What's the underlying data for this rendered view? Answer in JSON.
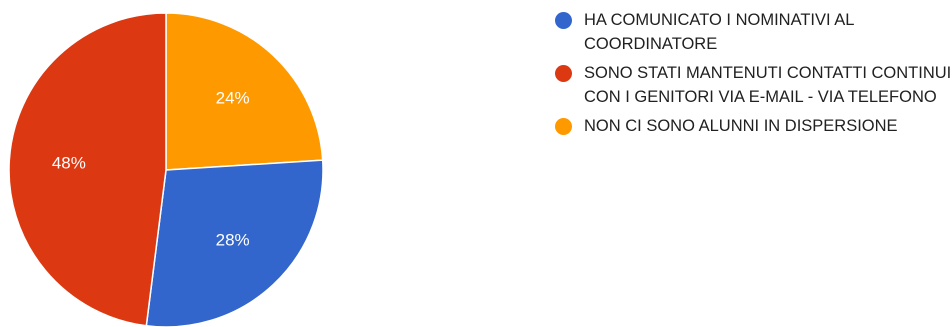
{
  "chart_data": {
    "type": "pie",
    "title": "",
    "slices": [
      {
        "label": "HA COMUNICATO I NOMINATIVI AL COORDINATORE",
        "value": 28,
        "value_label": "28%",
        "color": "#3366cc"
      },
      {
        "label": "SONO STATI MANTENUTI CONTATTI CONTINUI CON I GENITORI VIA E-MAIL - VIA TELEFONO",
        "value": 48,
        "value_label": "48%",
        "color": "#dc3912"
      },
      {
        "label": "NON CI SONO ALUNNI IN DISPERSIONE",
        "value": 24,
        "value_label": "24%",
        "color": "#ff9900"
      }
    ],
    "start_position": "twelve o'clock",
    "direction": "clockwise, starting with the third slice",
    "legend_position": "right"
  }
}
